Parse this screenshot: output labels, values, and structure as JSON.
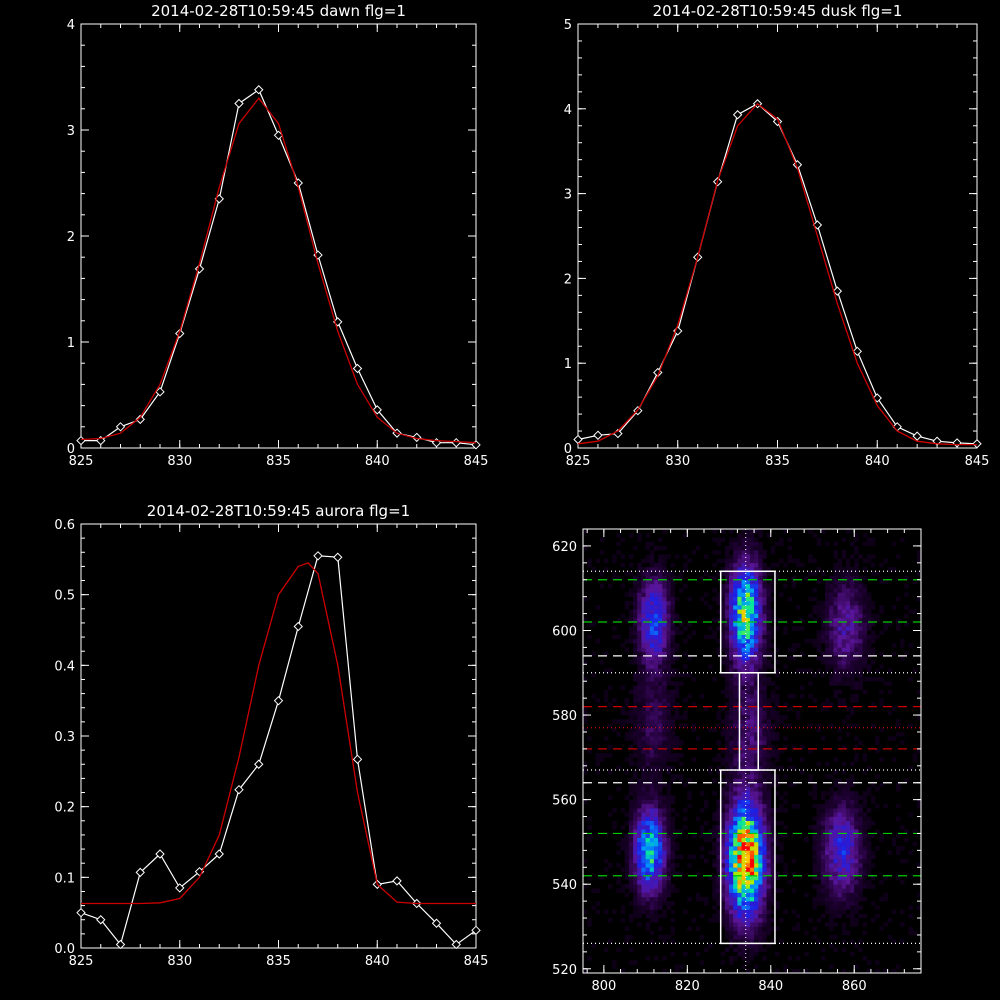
{
  "colors": {
    "background": "#000000",
    "axes": "#ffffff",
    "fit": "#cc0000",
    "data": "#ffffff",
    "green_line": "#00cc00",
    "red_line": "#cc0000",
    "white_line": "#ffffff"
  },
  "chart_data": [
    {
      "type": "line",
      "title": "2014-02-28T10:59:45 dawn flg=1",
      "xlabel": "",
      "ylabel": "",
      "xlim": [
        825,
        845
      ],
      "ylim": [
        0,
        4
      ],
      "xticks": [
        "825",
        "830",
        "835",
        "840",
        "845"
      ],
      "yticks": [
        "0",
        "1",
        "2",
        "3",
        "4"
      ],
      "series": [
        {
          "role": "data",
          "x": [
            825,
            826,
            827,
            828,
            829,
            830,
            831,
            832,
            833,
            834,
            835,
            836,
            837,
            838,
            839,
            840,
            841,
            842,
            843,
            844,
            845
          ],
          "values": [
            0.07,
            0.07,
            0.2,
            0.27,
            0.53,
            1.08,
            1.69,
            2.35,
            3.25,
            3.38,
            2.95,
            2.5,
            1.82,
            1.19,
            0.75,
            0.36,
            0.14,
            0.1,
            0.05,
            0.05,
            0.03
          ]
        },
        {
          "role": "fit",
          "x": [
            825,
            826,
            827,
            828,
            829,
            830,
            831,
            832,
            833,
            834,
            835,
            836,
            837,
            838,
            839,
            840,
            841,
            842,
            843,
            844,
            845
          ],
          "values": [
            0.08,
            0.09,
            0.14,
            0.29,
            0.6,
            1.1,
            1.74,
            2.46,
            3.06,
            3.3,
            3.06,
            2.46,
            1.74,
            1.1,
            0.6,
            0.29,
            0.14,
            0.09,
            0.07,
            0.06,
            0.05
          ]
        }
      ]
    },
    {
      "type": "line",
      "title": "2014-02-28T10:59:45 dusk flg=1",
      "xlabel": "",
      "ylabel": "",
      "xlim": [
        825,
        845
      ],
      "ylim": [
        0,
        5
      ],
      "xticks": [
        "825",
        "830",
        "835",
        "840",
        "845"
      ],
      "yticks": [
        "0",
        "1",
        "2",
        "3",
        "4",
        "5"
      ],
      "series": [
        {
          "role": "data",
          "x": [
            825,
            826,
            827,
            828,
            829,
            830,
            831,
            832,
            833,
            834,
            835,
            836,
            837,
            838,
            839,
            840,
            841,
            842,
            843,
            844,
            845
          ],
          "values": [
            0.1,
            0.15,
            0.17,
            0.44,
            0.89,
            1.38,
            2.25,
            3.14,
            3.93,
            4.06,
            3.85,
            3.34,
            2.63,
            1.85,
            1.14,
            0.59,
            0.25,
            0.14,
            0.08,
            0.06,
            0.05
          ]
        },
        {
          "role": "fit",
          "x": [
            825,
            826,
            827,
            828,
            829,
            830,
            831,
            832,
            833,
            834,
            835,
            836,
            837,
            838,
            839,
            840,
            841,
            842,
            843,
            844,
            845
          ],
          "values": [
            0.05,
            0.08,
            0.2,
            0.45,
            0.85,
            1.45,
            2.25,
            3.15,
            3.8,
            4.06,
            3.88,
            3.3,
            2.5,
            1.7,
            1.0,
            0.5,
            0.2,
            0.08,
            0.05,
            0.04,
            0.04
          ]
        }
      ]
    },
    {
      "type": "line",
      "title": "2014-02-28T10:59:45 aurora flg=1",
      "xlabel": "",
      "ylabel": "",
      "xlim": [
        825,
        845
      ],
      "ylim": [
        0,
        0.6
      ],
      "xticks": [
        "825",
        "830",
        "835",
        "840",
        "845"
      ],
      "yticks": [
        "0.0",
        "0.1",
        "0.2",
        "0.3",
        "0.4",
        "0.5",
        "0.6"
      ],
      "series": [
        {
          "role": "data",
          "x": [
            825,
            826,
            827,
            828,
            829,
            830,
            831,
            832,
            833,
            834,
            835,
            836,
            837,
            838,
            839,
            840,
            841,
            842,
            843,
            844,
            845
          ],
          "values": [
            0.05,
            0.04,
            0.005,
            0.107,
            0.133,
            0.085,
            0.108,
            0.133,
            0.224,
            0.26,
            0.35,
            0.455,
            0.555,
            0.553,
            0.267,
            0.09,
            0.095,
            0.063,
            0.035,
            0.005,
            0.025
          ]
        },
        {
          "role": "fit",
          "x": [
            825,
            826,
            827,
            828,
            829,
            830,
            831,
            832,
            833,
            834,
            835,
            836,
            836.5,
            837,
            838,
            839,
            840,
            841,
            842,
            843,
            844,
            845
          ],
          "values": [
            0.063,
            0.063,
            0.063,
            0.063,
            0.064,
            0.07,
            0.1,
            0.16,
            0.27,
            0.4,
            0.5,
            0.54,
            0.545,
            0.53,
            0.4,
            0.22,
            0.09,
            0.065,
            0.063,
            0.063,
            0.063,
            0.063
          ]
        }
      ]
    },
    {
      "type": "heatmap",
      "title": "",
      "xlabel": "",
      "ylabel": "",
      "xlim": [
        795,
        876
      ],
      "ylim": [
        519,
        624
      ],
      "xticks": [
        "800",
        "820",
        "840",
        "860"
      ],
      "yticks": [
        "520",
        "540",
        "560",
        "580",
        "600",
        "620"
      ],
      "blobs": [
        {
          "x": 834,
          "y": 546,
          "peak": 1.0,
          "sx": 2.8,
          "sy": 8.5
        },
        {
          "x": 834,
          "y": 604,
          "peak": 0.7,
          "sx": 2.4,
          "sy": 7.5
        },
        {
          "x": 811,
          "y": 548,
          "peak": 0.55,
          "sx": 2.4,
          "sy": 6.5
        },
        {
          "x": 812,
          "y": 602,
          "peak": 0.38,
          "sx": 2.4,
          "sy": 6.5
        },
        {
          "x": 857,
          "y": 548,
          "peak": 0.3,
          "sx": 3.0,
          "sy": 7
        },
        {
          "x": 858,
          "y": 601,
          "peak": 0.2,
          "sx": 3.0,
          "sy": 7
        },
        {
          "x": 812,
          "y": 578,
          "peak": 0.1,
          "sx": 3,
          "sy": 8
        },
        {
          "x": 835,
          "y": 576,
          "peak": 0.14,
          "sx": 3,
          "sy": 8
        }
      ],
      "vline_x": 834,
      "hlines": [
        {
          "y": 612,
          "color": "green",
          "dash": "dashed"
        },
        {
          "y": 602,
          "color": "green",
          "dash": "dashed"
        },
        {
          "y": 552,
          "color": "green",
          "dash": "dashed"
        },
        {
          "y": 542,
          "color": "green",
          "dash": "dashed"
        },
        {
          "y": 594,
          "color": "white",
          "dash": "dashed"
        },
        {
          "y": 564,
          "color": "white",
          "dash": "dashed"
        },
        {
          "y": 582,
          "color": "red",
          "dash": "dashed"
        },
        {
          "y": 572,
          "color": "red",
          "dash": "dashed"
        },
        {
          "y": 614,
          "color": "white",
          "dash": "dotted"
        },
        {
          "y": 590,
          "color": "white",
          "dash": "dotted"
        },
        {
          "y": 577,
          "color": "red",
          "dash": "dotted"
        },
        {
          "y": 567,
          "color": "white",
          "dash": "dotted"
        },
        {
          "y": 526,
          "color": "white",
          "dash": "dotted"
        }
      ],
      "boxes": [
        {
          "x0": 828,
          "x1": 841,
          "y0": 590,
          "y1": 614
        },
        {
          "x0": 828,
          "x1": 841,
          "y0": 526,
          "y1": 567
        },
        {
          "x0": 832.5,
          "x1": 837,
          "y0": 567,
          "y1": 590
        }
      ]
    }
  ]
}
